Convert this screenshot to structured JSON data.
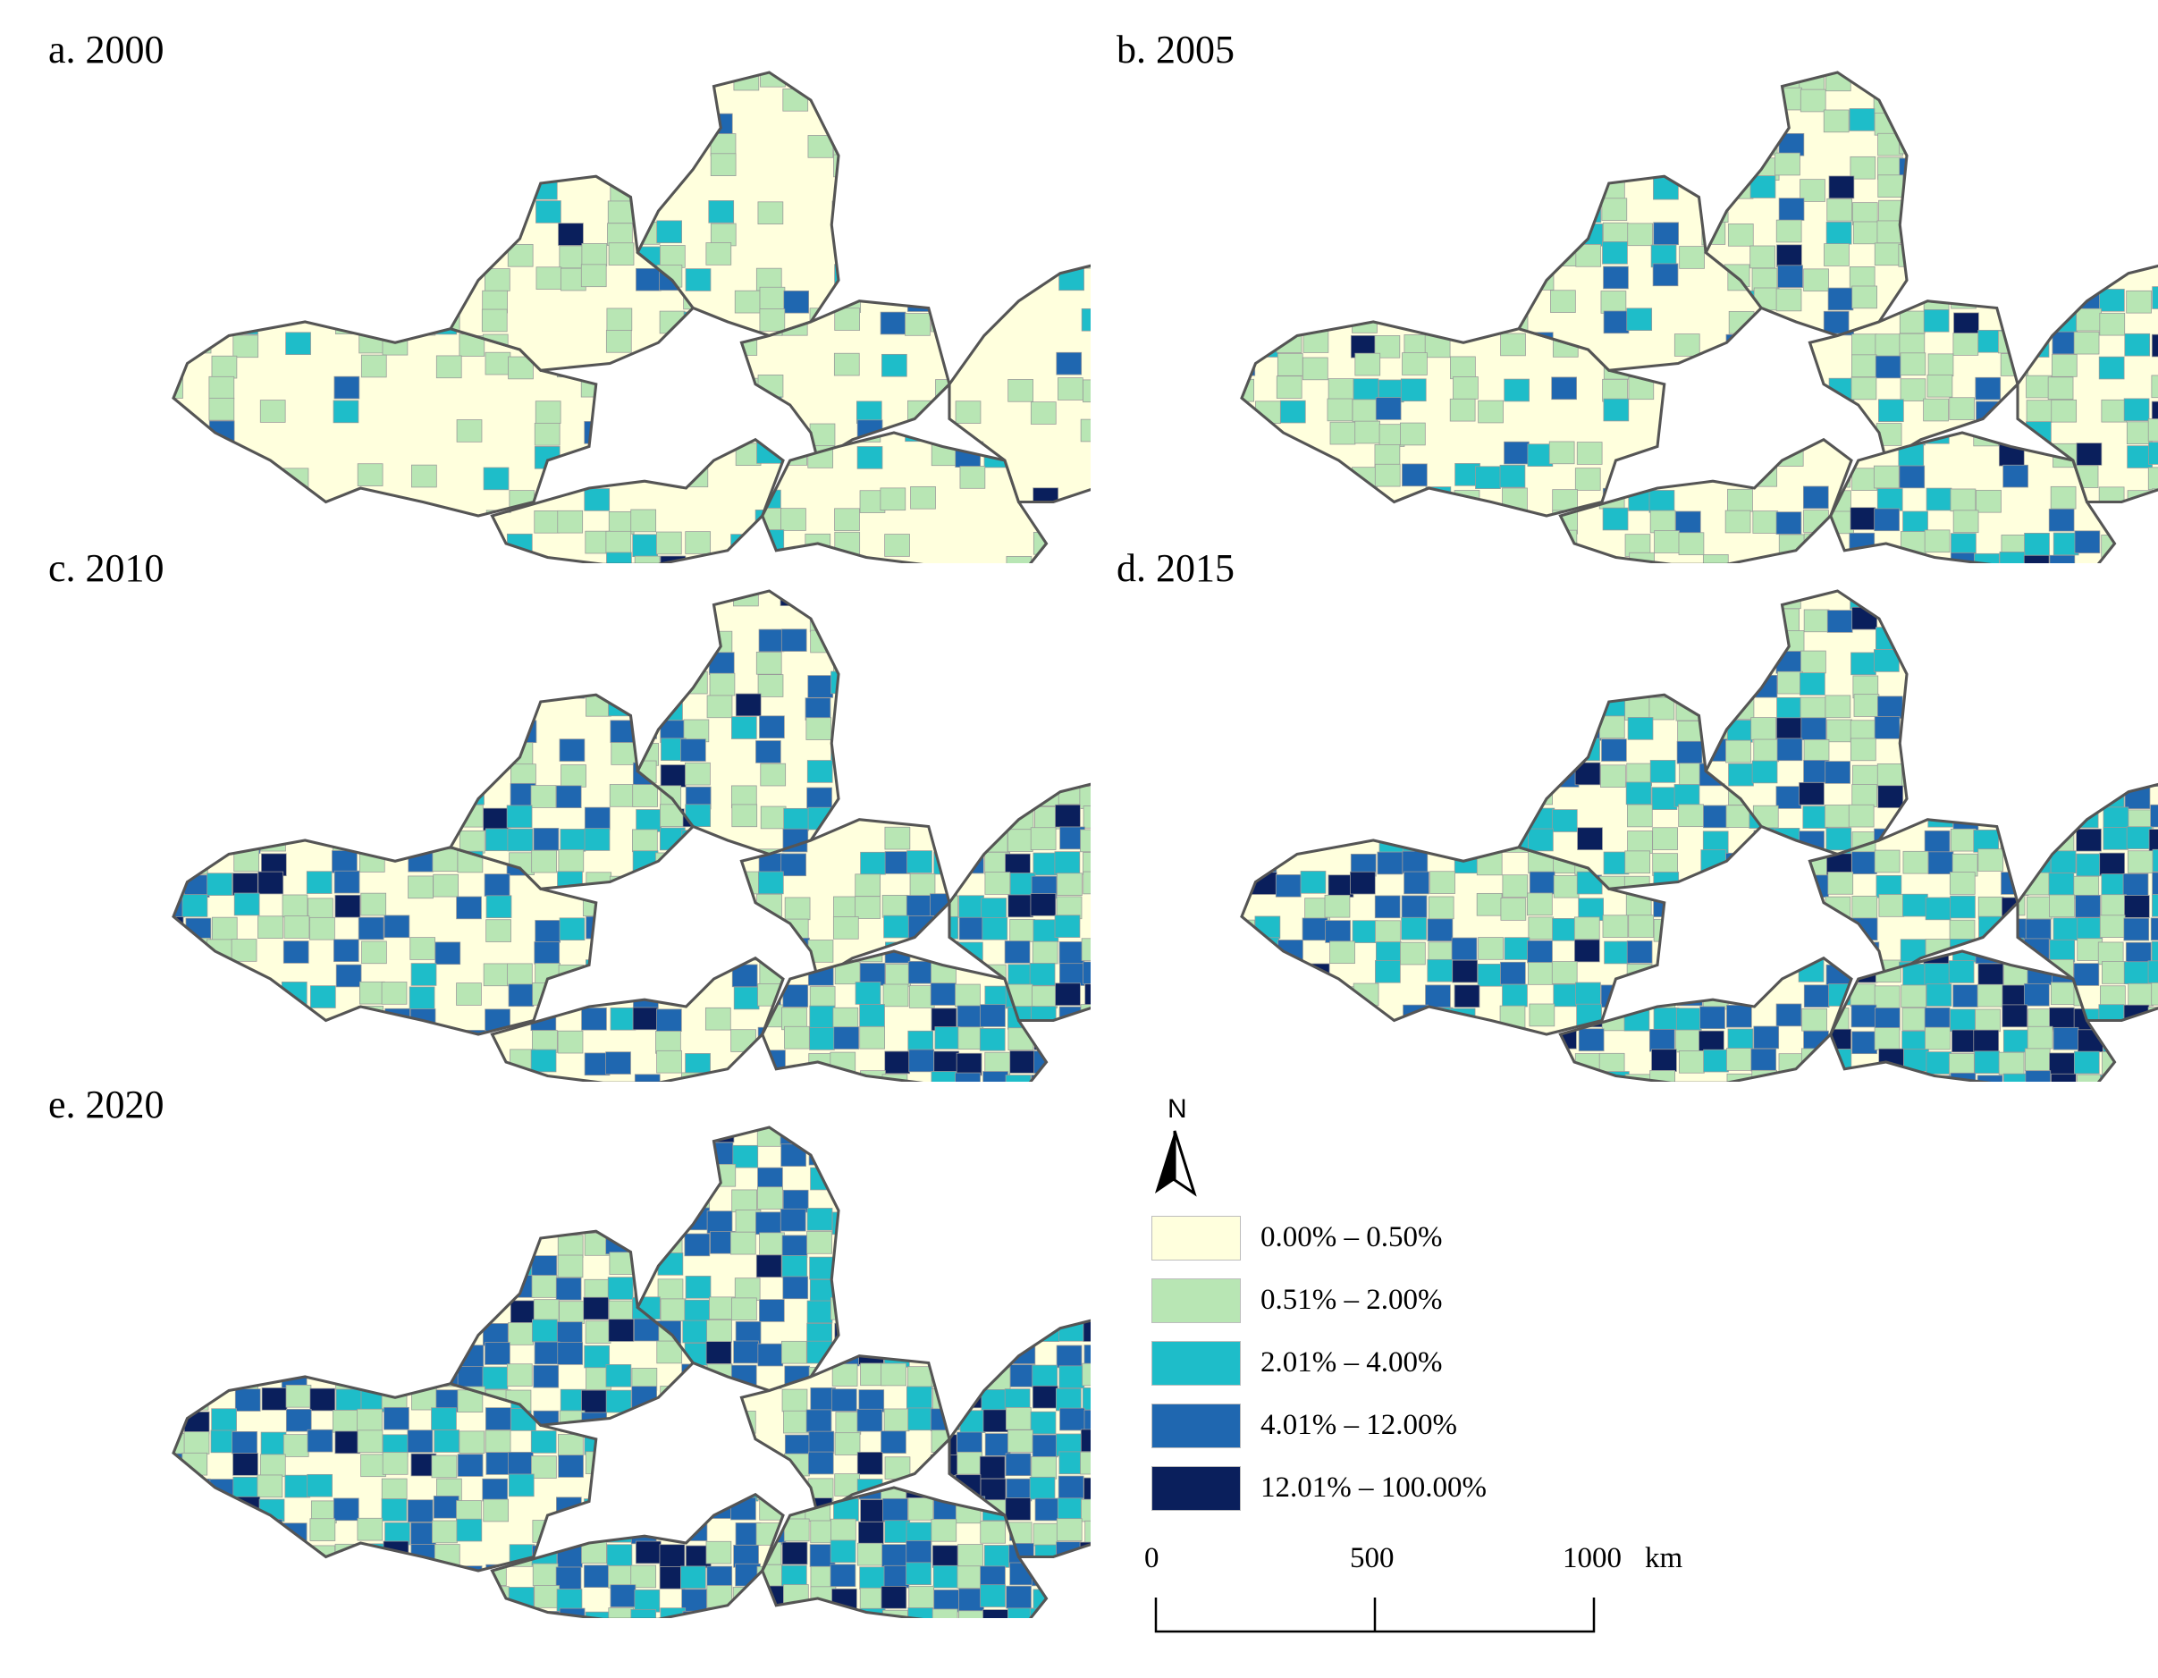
{
  "panels": [
    {
      "id": "a",
      "title": "a. 2000"
    },
    {
      "id": "b",
      "title": "b. 2005"
    },
    {
      "id": "c",
      "title": "c. 2010"
    },
    {
      "id": "d",
      "title": "d. 2015"
    },
    {
      "id": "e",
      "title": "e. 2020"
    }
  ],
  "legend": {
    "items": [
      {
        "label": "0.00% – 0.50%",
        "color": "#ffffdd"
      },
      {
        "label": "0.51% – 2.00%",
        "color": "#b8e6b4"
      },
      {
        "label": "2.01% – 4.00%",
        "color": "#1ebdc9"
      },
      {
        "label": "4.01% – 12.00%",
        "color": "#1f67b0"
      },
      {
        "label": "12.01% – 100.00%",
        "color": "#0a1f5c"
      }
    ]
  },
  "north_arrow": {
    "label": "N"
  },
  "scale_bar": {
    "ticks": [
      "0",
      "500",
      "1000"
    ],
    "unit": "km"
  }
}
